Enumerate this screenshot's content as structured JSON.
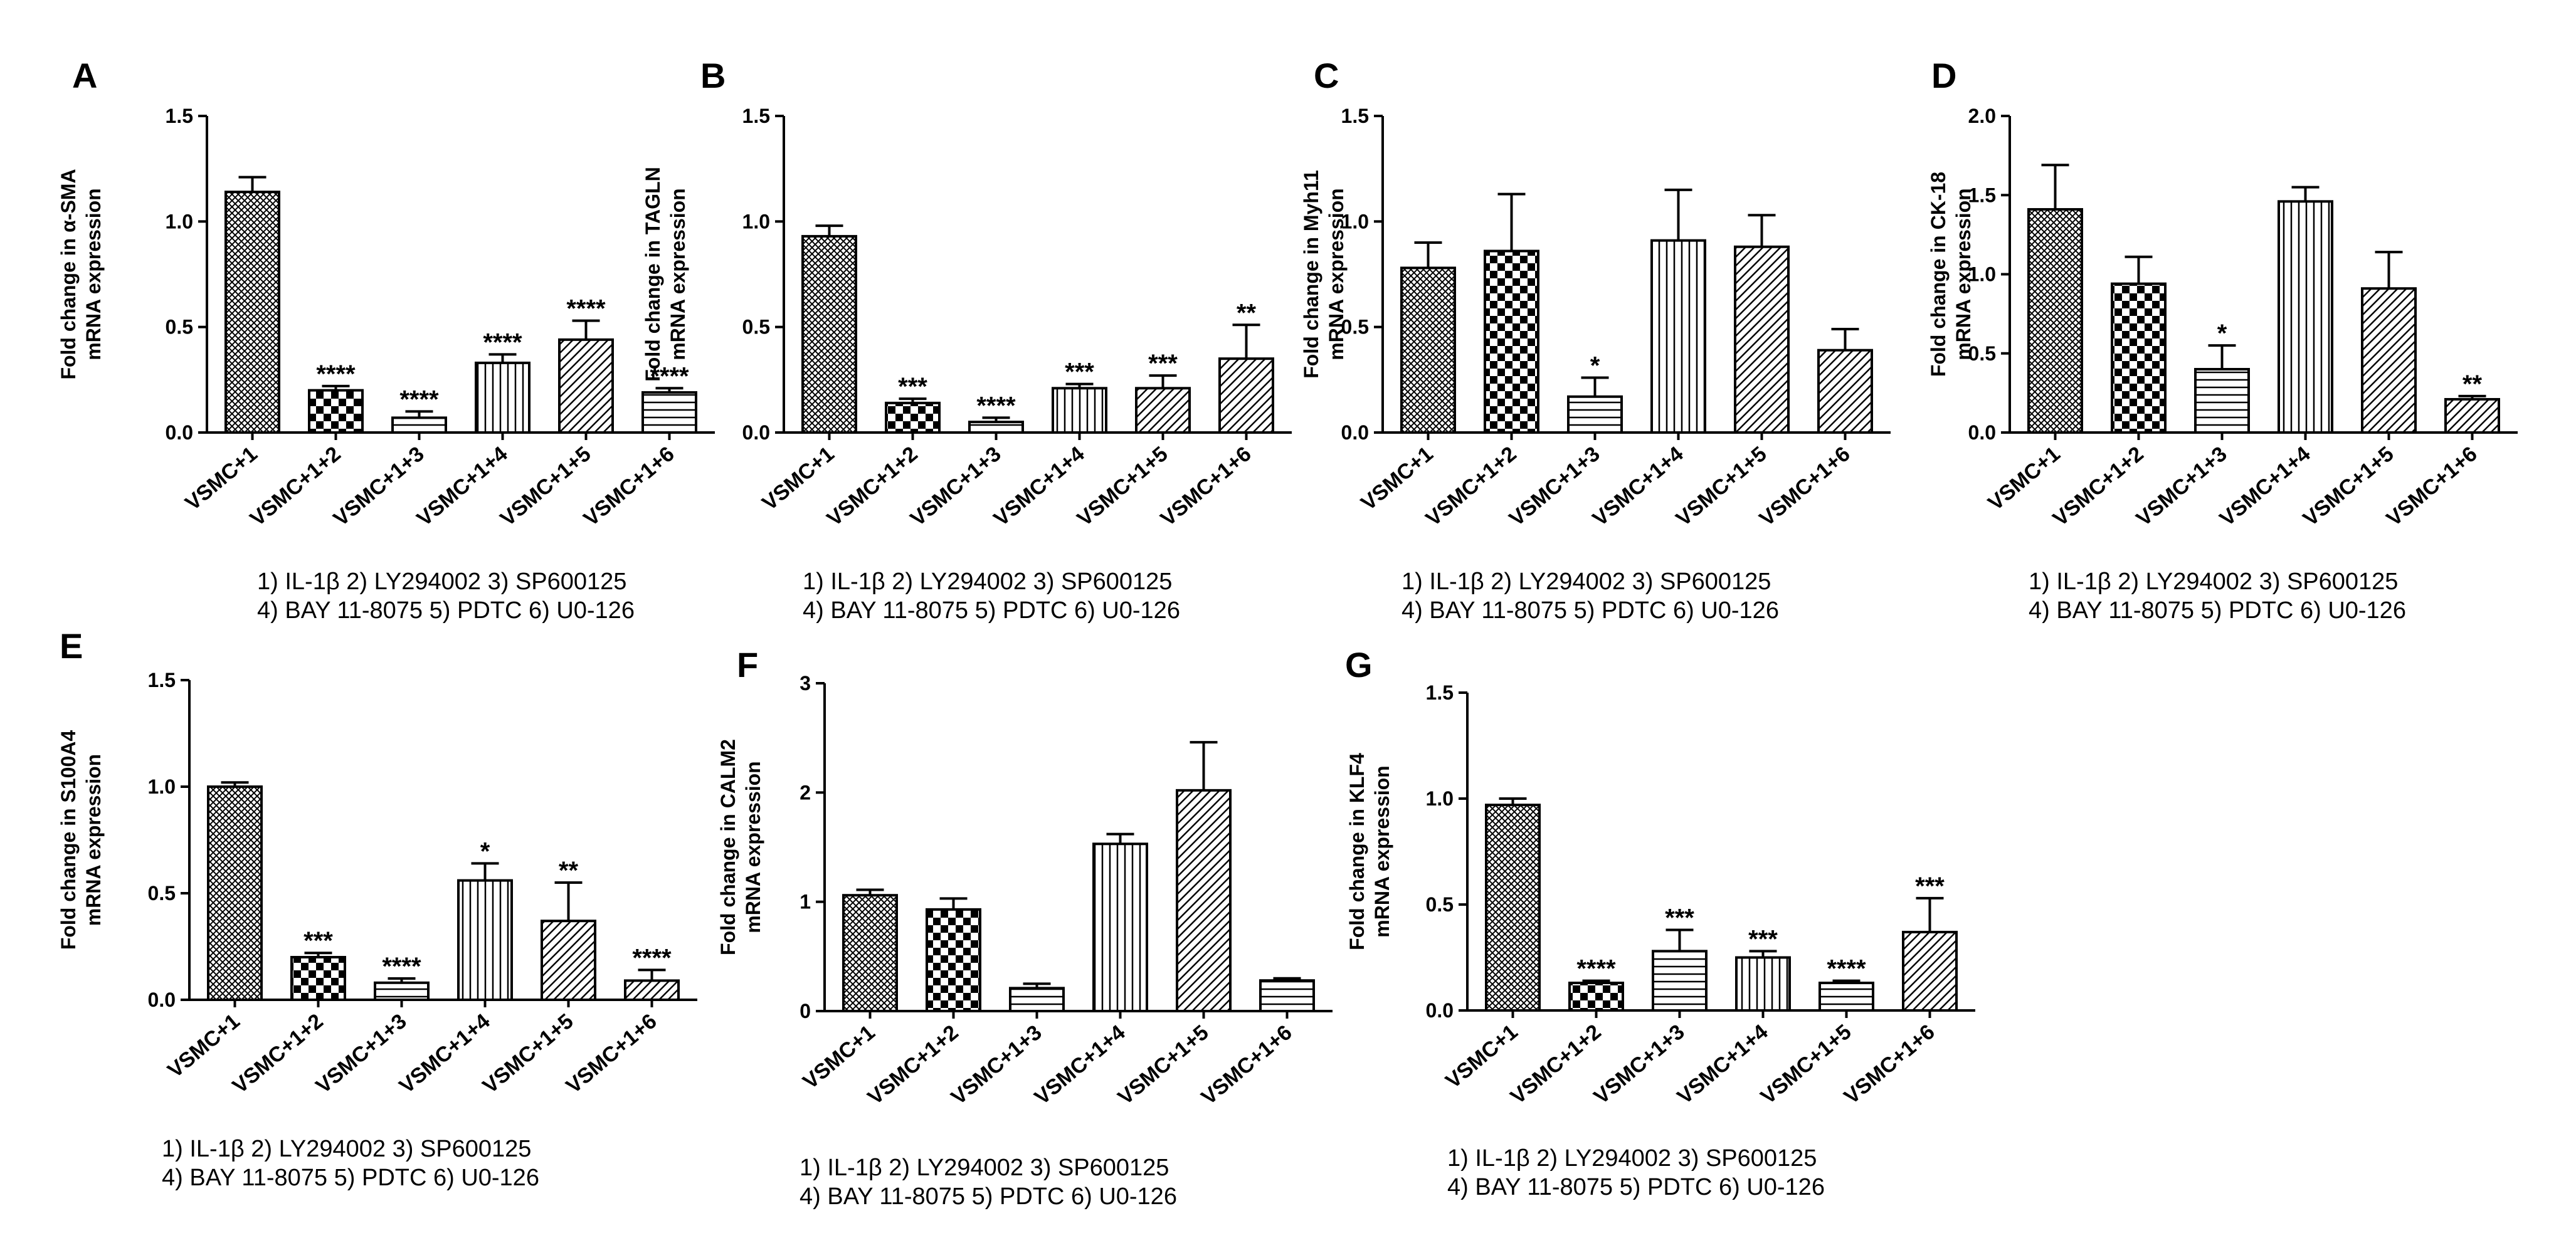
{
  "figure": {
    "categories": [
      "VSMC+1",
      "VSMC+1+2",
      "VSMC+1+3",
      "VSMC+1+4",
      "VSMC+1+5",
      "VSMC+1+6"
    ],
    "legend_line1": "1) IL-1β   2) LY294002   3) SP600125",
    "legend_line2": "4) BAY 11-8075 5) PDTC 6) U0-126",
    "bar_stroke": "#000000",
    "background": "#ffffff"
  },
  "chart_data": [
    {
      "panel": "A",
      "type": "bar",
      "ylabel": [
        "Fold change in α-SMA",
        "mRNA expression"
      ],
      "ylim": [
        0,
        1.5
      ],
      "yticks": [
        "0.0",
        "0.5",
        "1.0",
        "1.5"
      ],
      "categories": [
        "VSMC+1",
        "VSMC+1+2",
        "VSMC+1+3",
        "VSMC+1+4",
        "VSMC+1+5",
        "VSMC+1+6"
      ],
      "values": [
        1.14,
        0.2,
        0.07,
        0.33,
        0.44,
        0.19
      ],
      "errors": [
        0.07,
        0.02,
        0.03,
        0.04,
        0.09,
        0.02
      ],
      "significance": [
        "",
        "****",
        "****",
        "****",
        "****",
        "****"
      ],
      "patterns": [
        "crosshatch",
        "checker",
        "hlines",
        "vlines",
        "diag",
        "hlines"
      ]
    },
    {
      "panel": "B",
      "type": "bar",
      "ylabel": [
        "Fold change in TAGLN",
        "mRNA expression"
      ],
      "ylim": [
        0,
        1.5
      ],
      "yticks": [
        "0.0",
        "0.5",
        "1.0",
        "1.5"
      ],
      "categories": [
        "VSMC+1",
        "VSMC+1+2",
        "VSMC+1+3",
        "VSMC+1+4",
        "VSMC+1+5",
        "VSMC+1+6"
      ],
      "values": [
        0.93,
        0.14,
        0.05,
        0.21,
        0.21,
        0.35
      ],
      "errors": [
        0.05,
        0.02,
        0.02,
        0.02,
        0.06,
        0.16
      ],
      "significance": [
        "",
        "***",
        "****",
        "***",
        "***",
        "**"
      ],
      "patterns": [
        "crosshatch",
        "checker",
        "hlines",
        "vlines",
        "diag",
        "diag"
      ]
    },
    {
      "panel": "C",
      "type": "bar",
      "ylabel": [
        "Fold change in Myh11",
        "mRNA expression"
      ],
      "ylim": [
        0,
        1.5
      ],
      "yticks": [
        "0.0",
        "0.5",
        "1.0",
        "1.5"
      ],
      "categories": [
        "VSMC+1",
        "VSMC+1+2",
        "VSMC+1+3",
        "VSMC+1+4",
        "VSMC+1+5",
        "VSMC+1+6"
      ],
      "values": [
        0.78,
        0.86,
        0.17,
        0.91,
        0.88,
        0.39
      ],
      "errors": [
        0.12,
        0.27,
        0.09,
        0.24,
        0.15,
        0.1
      ],
      "significance": [
        "",
        "",
        "*",
        "",
        "",
        ""
      ],
      "patterns": [
        "crosshatch",
        "checker",
        "hlines",
        "vlines",
        "diag",
        "diag"
      ]
    },
    {
      "panel": "D",
      "type": "bar",
      "ylabel": [
        "Fold change in CK-18",
        "mRNA expression"
      ],
      "ylim": [
        0,
        2.0
      ],
      "yticks": [
        "0.0",
        "0.5",
        "1.0",
        "1.5",
        "2.0"
      ],
      "categories": [
        "VSMC+1",
        "VSMC+1+2",
        "VSMC+1+3",
        "VSMC+1+4",
        "VSMC+1+5",
        "VSMC+1+6"
      ],
      "values": [
        1.41,
        0.94,
        0.4,
        1.46,
        0.91,
        0.21
      ],
      "errors": [
        0.28,
        0.17,
        0.15,
        0.09,
        0.23,
        0.02
      ],
      "significance": [
        "",
        "",
        "*",
        "",
        "",
        "**"
      ],
      "patterns": [
        "crosshatch",
        "checker",
        "hlines",
        "vlines",
        "diag",
        "diag"
      ]
    },
    {
      "panel": "E",
      "type": "bar",
      "ylabel": [
        "Fold change in S100A4",
        "mRNA expression"
      ],
      "ylim": [
        0,
        1.5
      ],
      "yticks": [
        "0.0",
        "0.5",
        "1.0",
        "1.5"
      ],
      "categories": [
        "VSMC+1",
        "VSMC+1+2",
        "VSMC+1+3",
        "VSMC+1+4",
        "VSMC+1+5",
        "VSMC+1+6"
      ],
      "values": [
        1.0,
        0.2,
        0.08,
        0.56,
        0.37,
        0.09
      ],
      "errors": [
        0.02,
        0.02,
        0.02,
        0.08,
        0.18,
        0.05
      ],
      "significance": [
        "",
        "***",
        "****",
        "*",
        "**",
        "****"
      ],
      "patterns": [
        "crosshatch",
        "checker",
        "hlines",
        "vlines",
        "diag",
        "diag"
      ]
    },
    {
      "panel": "F",
      "type": "bar",
      "ylabel": [
        "Fold change in CALM2",
        "mRNA expression"
      ],
      "ylim": [
        0,
        3
      ],
      "yticks": [
        "0",
        "1",
        "2",
        "3"
      ],
      "categories": [
        "VSMC+1",
        "VSMC+1+2",
        "VSMC+1+3",
        "VSMC+1+4",
        "VSMC+1+5",
        "VSMC+1+6"
      ],
      "values": [
        1.06,
        0.93,
        0.21,
        1.53,
        2.02,
        0.28
      ],
      "errors": [
        0.05,
        0.1,
        0.04,
        0.09,
        0.44,
        0.02
      ],
      "significance": [
        "",
        "",
        "",
        "",
        "",
        ""
      ],
      "patterns": [
        "crosshatch",
        "checker",
        "hlines",
        "vlines",
        "diag",
        "hlines"
      ]
    },
    {
      "panel": "G",
      "type": "bar",
      "ylabel": [
        "Fold change in KLF4",
        "mRNA expression"
      ],
      "ylim": [
        0,
        1.5
      ],
      "yticks": [
        "0.0",
        "0.5",
        "1.0",
        "1.5"
      ],
      "categories": [
        "VSMC+1",
        "VSMC+1+2",
        "VSMC+1+3",
        "VSMC+1+4",
        "VSMC+1+5",
        "VSMC+1+6"
      ],
      "values": [
        0.97,
        0.13,
        0.28,
        0.25,
        0.13,
        0.37
      ],
      "errors": [
        0.03,
        0.01,
        0.1,
        0.03,
        0.01,
        0.16
      ],
      "significance": [
        "",
        "****",
        "***",
        "***",
        "****",
        "***"
      ],
      "patterns": [
        "crosshatch",
        "checker",
        "hlines",
        "vlines",
        "hlines",
        "diag"
      ]
    }
  ]
}
